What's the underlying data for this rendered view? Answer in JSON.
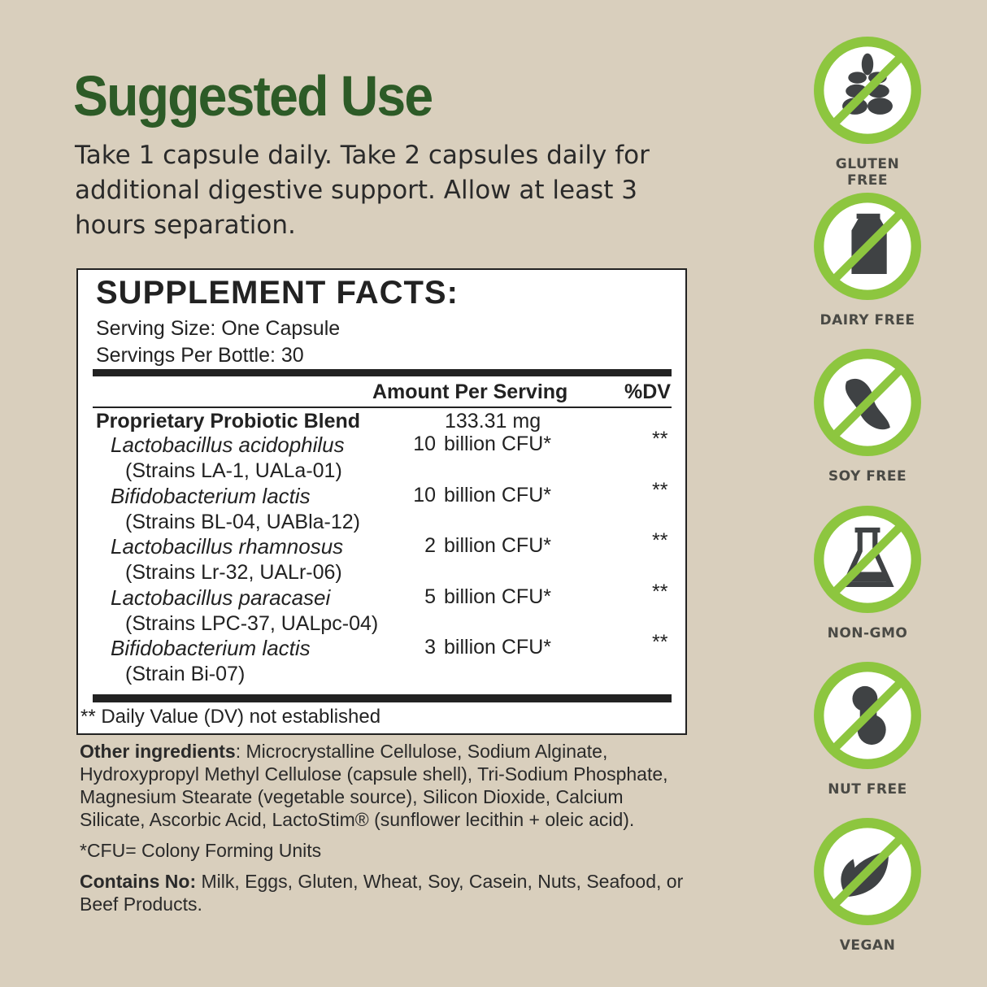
{
  "heading": "Suggested Use",
  "intro": "Take 1 capsule daily. Take 2 capsules daily for additional digestive support. Allow at least 3 hours separation.",
  "facts": {
    "title": "SUPPLEMENT FACTS:",
    "serving_size": "Serving Size: One Capsule",
    "servings_per": "Servings Per Bottle: 30",
    "col_amount": "Amount Per Serving",
    "col_dv": "%DV",
    "blend_name": "Proprietary Probiotic Blend",
    "blend_amount": "133.31 mg",
    "rows": [
      {
        "name": "Lactobacillus acidophilus",
        "strain": "(Strains LA-1, UALa-01)",
        "qty": "10",
        "unit": "billion CFU*",
        "dv": "**"
      },
      {
        "name": "Bifidobacterium lactis",
        "strain": "(Strains BL-04, UABla-12)",
        "qty": "10",
        "unit": "billion CFU*",
        "dv": "**"
      },
      {
        "name": "Lactobacillus rhamnosus",
        "strain": "(Strains Lr-32, UALr-06)",
        "qty": "2",
        "unit": "billion CFU*",
        "dv": "**"
      },
      {
        "name": "Lactobacillus paracasei",
        "strain": "(Strains LPC-37, UALpc-04)",
        "qty": "5",
        "unit": "billion CFU*",
        "dv": "**"
      },
      {
        "name": "Bifidobacterium lactis",
        "strain": "(Strain Bi-07)",
        "qty": "3",
        "unit": "billion CFU*",
        "dv": "**"
      }
    ],
    "footnote": "** Daily Value (DV) not established"
  },
  "other": {
    "label": "Other ingredients",
    "text": ": Microcrystalline Cellulose, Sodium Alginate, Hydroxypropyl Methyl Cellulose (capsule shell), Tri-Sodium Phosphate, Magnesium Stearate (vegetable source), Silicon Dioxide, Calcium Silicate, Ascorbic Acid, LactoStim® (sunflower lecithin + oleic acid).",
    "cfu": "*CFU= Colony Forming Units",
    "contains_label": "Contains No:",
    "contains_text": " Milk, Eggs, Gluten, Wheat, Soy, Casein, Nuts, Seafood, or Beef Products."
  },
  "colors": {
    "heading": "#2d5b27",
    "ring": "#8dc63f",
    "icon": "#3f4244",
    "background": "#d9cfbd"
  },
  "badges": [
    {
      "label": "GLUTEN FREE",
      "icon": "wheat-icon"
    },
    {
      "label": "DAIRY FREE",
      "icon": "milk-carton-icon"
    },
    {
      "label": "SOY FREE",
      "icon": "soybean-icon"
    },
    {
      "label": "NON-GMO",
      "icon": "flask-icon"
    },
    {
      "label": "NUT FREE",
      "icon": "peanut-icon"
    },
    {
      "label": "VEGAN",
      "icon": "leaf-icon"
    }
  ]
}
